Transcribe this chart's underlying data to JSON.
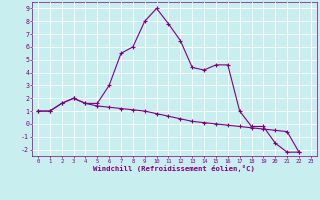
{
  "xlabel": "Windchill (Refroidissement éolien,°C)",
  "background_color": "#c8eef0",
  "grid_color": "#ffffff",
  "line_color": "#800080",
  "x_values": [
    0,
    1,
    2,
    3,
    4,
    5,
    6,
    7,
    8,
    9,
    10,
    11,
    12,
    13,
    14,
    15,
    16,
    17,
    18,
    19,
    20,
    21,
    22,
    23
  ],
  "curve1_y": [
    1.0,
    1.0,
    1.6,
    2.0,
    1.6,
    1.6,
    3.0,
    5.5,
    6.0,
    8.0,
    9.0,
    7.8,
    6.5,
    4.4,
    4.2,
    4.6,
    4.6,
    1.0,
    -0.2,
    -0.2,
    -1.5,
    -2.2,
    -2.2,
    null
  ],
  "curve2_y": [
    1.0,
    1.0,
    1.6,
    2.0,
    1.6,
    1.4,
    1.3,
    1.2,
    1.1,
    1.0,
    0.8,
    0.6,
    0.4,
    0.2,
    0.1,
    0.0,
    -0.1,
    -0.2,
    -0.3,
    -0.4,
    -0.5,
    -0.6,
    -2.2,
    null
  ],
  "ylim": [
    -2.5,
    9.5
  ],
  "xlim": [
    -0.5,
    23.5
  ],
  "yticks": [
    -2,
    -1,
    0,
    1,
    2,
    3,
    4,
    5,
    6,
    7,
    8,
    9
  ],
  "xticks": [
    0,
    1,
    2,
    3,
    4,
    5,
    6,
    7,
    8,
    9,
    10,
    11,
    12,
    13,
    14,
    15,
    16,
    17,
    18,
    19,
    20,
    21,
    22,
    23
  ],
  "markersize": 3,
  "linewidth": 0.8,
  "tick_fontsize_x": 4.0,
  "tick_fontsize_y": 4.8,
  "xlabel_fontsize": 5.2
}
